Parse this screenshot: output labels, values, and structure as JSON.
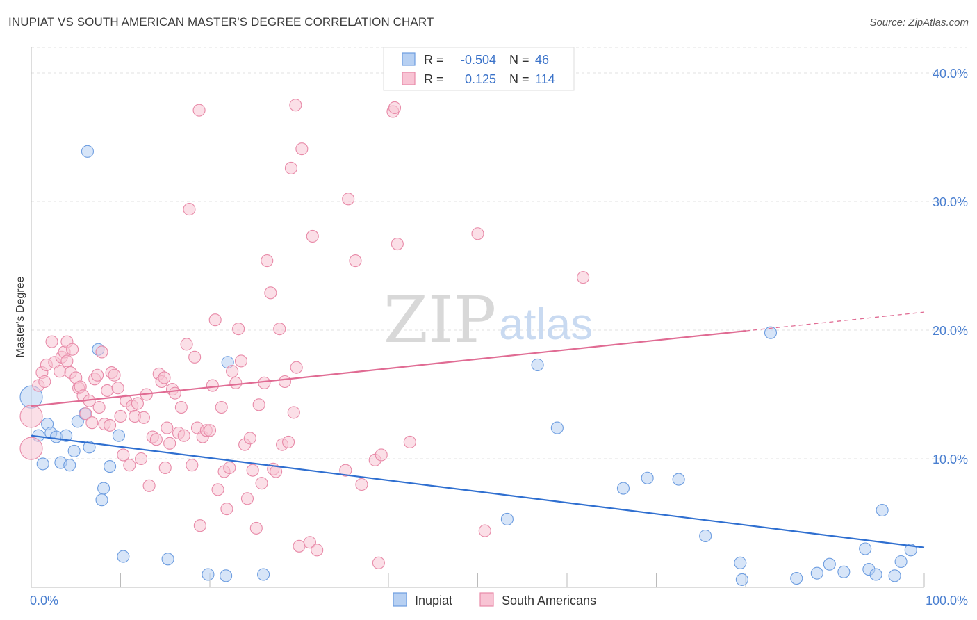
{
  "title": "INUPIAT VS SOUTH AMERICAN MASTER'S DEGREE CORRELATION CHART",
  "source": "Source: ZipAtlas.com",
  "watermark": {
    "zip": "ZIP",
    "atlas": "atlas"
  },
  "legend": {
    "rows": [
      {
        "r_label": "R =",
        "r_value": "-0.504",
        "n_label": "N =",
        "n_value": "46",
        "fill": "#b7d0f2",
        "stroke": "#6d9de0"
      },
      {
        "r_label": "R =",
        "r_value": "0.125",
        "n_label": "N =",
        "n_value": "114",
        "fill": "#f8c4d4",
        "stroke": "#e88aa8"
      }
    ]
  },
  "bottom_legend": [
    {
      "label": "Inupiat",
      "fill": "#b7d0f2",
      "stroke": "#6d9de0"
    },
    {
      "label": "South Americans",
      "fill": "#f8c4d4",
      "stroke": "#e88aa8"
    }
  ],
  "chart_data": {
    "type": "scatter",
    "ylabel": "Master's Degree",
    "xlabel": "",
    "xlim": [
      0,
      100
    ],
    "ylim": [
      0,
      42
    ],
    "x_tick_labels": [
      {
        "value": 0,
        "label": "0.0%"
      },
      {
        "value": 100,
        "label": "100.0%"
      }
    ],
    "y_tick_labels": [
      {
        "value": 10,
        "label": "10.0%"
      },
      {
        "value": 20,
        "label": "20.0%"
      },
      {
        "value": 30,
        "label": "30.0%"
      },
      {
        "value": 40,
        "label": "40.0%"
      }
    ],
    "grid": true,
    "series": [
      {
        "name": "Inupiat",
        "color": "#6d9de0",
        "fill": "#b7d0f2",
        "line_color": "#2f6fd0",
        "trend": {
          "x1": 0,
          "y1": 11.8,
          "x2": 100,
          "y2": 3.1,
          "dash_from": 100
        },
        "points": [
          [
            0,
            14.8
          ],
          [
            0.8,
            11.8
          ],
          [
            1.3,
            9.6
          ],
          [
            1.8,
            12.7
          ],
          [
            2.2,
            12.0
          ],
          [
            2.8,
            11.7
          ],
          [
            3.3,
            9.7
          ],
          [
            3.9,
            11.8
          ],
          [
            4.3,
            9.5
          ],
          [
            4.8,
            10.6
          ],
          [
            5.2,
            12.9
          ],
          [
            6.0,
            13.5
          ],
          [
            6.5,
            10.9
          ],
          [
            7.5,
            18.5
          ],
          [
            7.9,
            6.8
          ],
          [
            8.1,
            7.7
          ],
          [
            8.8,
            9.4
          ],
          [
            9.8,
            11.8
          ],
          [
            10.3,
            2.4
          ],
          [
            6.3,
            33.9
          ],
          [
            15.3,
            2.2
          ],
          [
            19.8,
            1.0
          ],
          [
            21.8,
            0.9
          ],
          [
            22.0,
            17.5
          ],
          [
            26.0,
            1.0
          ],
          [
            53.3,
            5.3
          ],
          [
            56.7,
            17.3
          ],
          [
            58.9,
            12.4
          ],
          [
            66.3,
            7.7
          ],
          [
            69.0,
            8.5
          ],
          [
            72.5,
            8.4
          ],
          [
            75.5,
            4.0
          ],
          [
            79.4,
            1.9
          ],
          [
            79.6,
            0.6
          ],
          [
            82.8,
            19.8
          ],
          [
            85.7,
            0.7
          ],
          [
            88.0,
            1.1
          ],
          [
            89.4,
            1.8
          ],
          [
            91.0,
            1.2
          ],
          [
            93.4,
            3.0
          ],
          [
            93.8,
            1.4
          ],
          [
            94.6,
            1.0
          ],
          [
            95.3,
            6.0
          ],
          [
            96.7,
            0.9
          ],
          [
            97.4,
            2.0
          ],
          [
            98.5,
            2.9
          ]
        ]
      },
      {
        "name": "South Americans",
        "color": "#e88aa8",
        "fill": "#f8c4d4",
        "line_color": "#e06b93",
        "trend": {
          "x1": 0,
          "y1": 14.1,
          "x2": 100,
          "y2": 21.4,
          "dash_from": 80
        },
        "points": [
          [
            0,
            10.8
          ],
          [
            0,
            13.3
          ],
          [
            0.8,
            15.7
          ],
          [
            1.2,
            16.7
          ],
          [
            1.5,
            16.0
          ],
          [
            1.7,
            17.3
          ],
          [
            2.3,
            19.1
          ],
          [
            2.6,
            17.5
          ],
          [
            3.2,
            16.8
          ],
          [
            3.4,
            17.9
          ],
          [
            3.7,
            18.3
          ],
          [
            4.0,
            17.6
          ],
          [
            4.0,
            19.1
          ],
          [
            4.4,
            16.7
          ],
          [
            4.6,
            18.5
          ],
          [
            5.0,
            16.3
          ],
          [
            5.3,
            15.5
          ],
          [
            5.5,
            15.6
          ],
          [
            5.8,
            14.9
          ],
          [
            6.1,
            13.5
          ],
          [
            6.5,
            14.5
          ],
          [
            6.8,
            12.8
          ],
          [
            7.1,
            16.2
          ],
          [
            7.4,
            16.5
          ],
          [
            7.6,
            14.0
          ],
          [
            7.9,
            18.3
          ],
          [
            8.2,
            12.7
          ],
          [
            8.5,
            15.3
          ],
          [
            8.8,
            12.6
          ],
          [
            9.0,
            16.7
          ],
          [
            9.3,
            16.5
          ],
          [
            9.7,
            15.5
          ],
          [
            10.0,
            13.3
          ],
          [
            10.3,
            10.3
          ],
          [
            10.6,
            14.5
          ],
          [
            11.0,
            9.5
          ],
          [
            11.3,
            14.1
          ],
          [
            11.6,
            13.3
          ],
          [
            11.9,
            14.3
          ],
          [
            12.3,
            10.0
          ],
          [
            12.6,
            13.2
          ],
          [
            12.9,
            15.0
          ],
          [
            13.2,
            7.9
          ],
          [
            13.6,
            11.7
          ],
          [
            14.0,
            11.5
          ],
          [
            14.3,
            16.6
          ],
          [
            14.6,
            16.0
          ],
          [
            14.9,
            16.3
          ],
          [
            15.2,
            12.4
          ],
          [
            15.5,
            11.2
          ],
          [
            15.8,
            15.4
          ],
          [
            16.1,
            15.1
          ],
          [
            16.5,
            12.0
          ],
          [
            16.8,
            14.0
          ],
          [
            17.1,
            11.8
          ],
          [
            17.4,
            18.9
          ],
          [
            17.7,
            29.4
          ],
          [
            18.0,
            9.5
          ],
          [
            18.3,
            17.9
          ],
          [
            18.6,
            12.4
          ],
          [
            18.9,
            4.8
          ],
          [
            19.2,
            11.7
          ],
          [
            19.6,
            12.2
          ],
          [
            20.0,
            12.2
          ],
          [
            20.3,
            15.7
          ],
          [
            20.6,
            20.8
          ],
          [
            20.9,
            7.6
          ],
          [
            21.3,
            14.0
          ],
          [
            21.6,
            9.0
          ],
          [
            21.9,
            6.1
          ],
          [
            22.2,
            9.3
          ],
          [
            22.5,
            16.8
          ],
          [
            22.9,
            15.9
          ],
          [
            23.2,
            20.1
          ],
          [
            23.5,
            17.6
          ],
          [
            23.9,
            11.1
          ],
          [
            24.2,
            6.9
          ],
          [
            24.5,
            11.6
          ],
          [
            24.8,
            9.1
          ],
          [
            25.2,
            4.6
          ],
          [
            25.5,
            14.2
          ],
          [
            25.8,
            8.1
          ],
          [
            26.1,
            15.9
          ],
          [
            26.4,
            25.4
          ],
          [
            26.8,
            22.9
          ],
          [
            27.1,
            9.2
          ],
          [
            27.4,
            9.0
          ],
          [
            27.8,
            20.1
          ],
          [
            28.1,
            11.1
          ],
          [
            28.4,
            16.0
          ],
          [
            28.8,
            11.3
          ],
          [
            29.1,
            32.6
          ],
          [
            29.4,
            13.6
          ],
          [
            29.7,
            17.1
          ],
          [
            30.0,
            3.2
          ],
          [
            30.3,
            34.1
          ],
          [
            31.2,
            3.5
          ],
          [
            32.0,
            2.9
          ],
          [
            31.5,
            27.3
          ],
          [
            29.6,
            37.5
          ],
          [
            18.8,
            37.1
          ],
          [
            35.2,
            9.1
          ],
          [
            35.5,
            30.2
          ],
          [
            36.3,
            25.4
          ],
          [
            37.0,
            8.0
          ],
          [
            38.5,
            9.9
          ],
          [
            39.2,
            10.3
          ],
          [
            38.9,
            1.9
          ],
          [
            40.5,
            37.0
          ],
          [
            40.7,
            37.3
          ],
          [
            41.0,
            26.7
          ],
          [
            42.4,
            11.3
          ],
          [
            50.0,
            27.5
          ],
          [
            50.8,
            4.4
          ],
          [
            61.8,
            24.1
          ],
          [
            15.0,
            9.3
          ]
        ]
      }
    ]
  }
}
